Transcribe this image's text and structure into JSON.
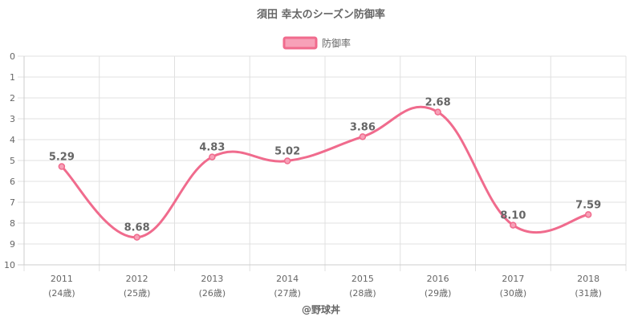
{
  "chart_data": {
    "type": "line",
    "title": "須田 幸太のシーズン防御率",
    "legend": {
      "label": "防御率",
      "placement": "top-center"
    },
    "categories": [
      "2011",
      "2012",
      "2013",
      "2014",
      "2015",
      "2016",
      "2017",
      "2018"
    ],
    "ages": [
      "(24歳)",
      "(25歳)",
      "(26歳)",
      "(27歳)",
      "(28歳)",
      "(29歳)",
      "(30歳)",
      "(31歳)"
    ],
    "series": [
      {
        "name": "防御率",
        "values": [
          5.29,
          8.68,
          4.83,
          5.02,
          3.86,
          2.68,
          8.1,
          7.59
        ]
      }
    ],
    "value_labels": [
      "5.29",
      "8.68",
      "4.83",
      "5.02",
      "3.86",
      "2.68",
      "8.10",
      "7.59"
    ],
    "y_ticks": [
      "0",
      "1",
      "2",
      "3",
      "4",
      "5",
      "6",
      "7",
      "8",
      "9",
      "10"
    ],
    "ylim": [
      0,
      10
    ],
    "y_reversed": true,
    "grid": true,
    "colors": {
      "line": "#f06b8d",
      "fill": "#f7a1b8",
      "grid": "#e0e0e0",
      "text": "#666666"
    }
  },
  "footer": "@野球丼"
}
